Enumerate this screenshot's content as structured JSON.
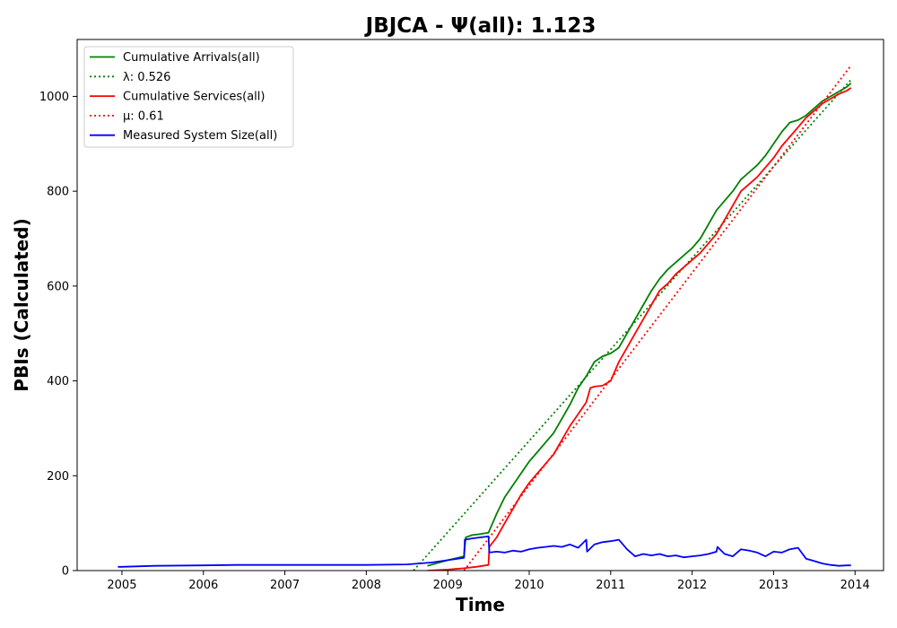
{
  "chart_data": {
    "type": "line",
    "title": "JBJCA -  Ψ(all): 1.123",
    "xlabel": "Time",
    "ylabel": "PBIs (Calculated)",
    "xlim": [
      2004.45,
      2014.35
    ],
    "ylim": [
      0,
      1120
    ],
    "xticks": [
      2005,
      2006,
      2007,
      2008,
      2009,
      2010,
      2011,
      2012,
      2013,
      2014
    ],
    "yticks": [
      0,
      200,
      400,
      600,
      800,
      1000
    ],
    "grid": false,
    "legend_position": "upper-left",
    "series": [
      {
        "name": "Cumulative Arrivals(all)",
        "color": "#008000",
        "style": "solid",
        "x": [
          2008.75,
          2009.0,
          2009.2,
          2009.22,
          2009.3,
          2009.4,
          2009.5,
          2009.6,
          2009.7,
          2009.8,
          2009.9,
          2010.0,
          2010.1,
          2010.2,
          2010.3,
          2010.4,
          2010.5,
          2010.6,
          2010.7,
          2010.8,
          2010.9,
          2011.0,
          2011.1,
          2011.2,
          2011.3,
          2011.4,
          2011.5,
          2011.6,
          2011.7,
          2011.8,
          2011.9,
          2012.0,
          2012.1,
          2012.2,
          2012.3,
          2012.4,
          2012.5,
          2012.6,
          2012.7,
          2012.8,
          2012.9,
          2013.0,
          2013.1,
          2013.2,
          2013.3,
          2013.4,
          2013.5,
          2013.6,
          2013.7,
          2013.8,
          2013.9,
          2013.95
        ],
        "values": [
          10,
          22,
          30,
          70,
          75,
          77,
          80,
          120,
          155,
          180,
          205,
          230,
          250,
          270,
          290,
          320,
          350,
          385,
          410,
          440,
          452,
          458,
          470,
          500,
          530,
          560,
          590,
          615,
          635,
          650,
          665,
          680,
          700,
          730,
          760,
          780,
          800,
          825,
          840,
          855,
          875,
          900,
          925,
          945,
          950,
          960,
          975,
          990,
          1000,
          1010,
          1020,
          1028
        ]
      },
      {
        "name": "λ: 0.526",
        "color": "#008000",
        "style": "dotted",
        "x": [
          2008.58,
          2013.95
        ],
        "values": [
          0,
          1035
        ]
      },
      {
        "name": "Cumulative Services(all)",
        "color": "#ff0000",
        "style": "solid",
        "x": [
          2008.75,
          2009.0,
          2009.2,
          2009.35,
          2009.5,
          2009.51,
          2009.6,
          2009.7,
          2009.8,
          2009.9,
          2010.0,
          2010.1,
          2010.2,
          2010.3,
          2010.4,
          2010.5,
          2010.6,
          2010.7,
          2010.75,
          2010.8,
          2010.9,
          2011.0,
          2011.1,
          2011.2,
          2011.3,
          2011.4,
          2011.5,
          2011.6,
          2011.7,
          2011.8,
          2011.9,
          2012.0,
          2012.1,
          2012.2,
          2012.3,
          2012.4,
          2012.5,
          2012.6,
          2012.7,
          2012.8,
          2012.9,
          2013.0,
          2013.1,
          2013.2,
          2013.3,
          2013.4,
          2013.5,
          2013.6,
          2013.7,
          2013.8,
          2013.9,
          2013.95
        ],
        "values": [
          0,
          2,
          5,
          8,
          12,
          50,
          70,
          100,
          130,
          160,
          185,
          205,
          225,
          245,
          275,
          305,
          330,
          355,
          385,
          388,
          390,
          400,
          440,
          470,
          500,
          530,
          560,
          590,
          605,
          625,
          640,
          655,
          670,
          690,
          710,
          740,
          770,
          800,
          815,
          830,
          850,
          870,
          895,
          915,
          935,
          955,
          970,
          985,
          995,
          1005,
          1012,
          1018
        ]
      },
      {
        "name": "μ: 0.61",
        "color": "#ff0000",
        "style": "dotted",
        "x": [
          2009.2,
          2013.95
        ],
        "values": [
          0,
          1065
        ]
      },
      {
        "name": "Measured System Size(all)",
        "color": "#0000ff",
        "style": "solid",
        "x": [
          2004.95,
          2005.0,
          2005.4,
          2006.0,
          2006.4,
          2007.0,
          2007.5,
          2008.0,
          2008.5,
          2008.8,
          2009.0,
          2009.2,
          2009.21,
          2009.3,
          2009.4,
          2009.5,
          2009.51,
          2009.6,
          2009.7,
          2009.8,
          2009.9,
          2010.0,
          2010.1,
          2010.2,
          2010.3,
          2010.4,
          2010.5,
          2010.6,
          2010.7,
          2010.71,
          2010.8,
          2010.9,
          2011.0,
          2011.1,
          2011.2,
          2011.3,
          2011.4,
          2011.5,
          2011.6,
          2011.7,
          2011.8,
          2011.9,
          2012.0,
          2012.1,
          2012.2,
          2012.3,
          2012.31,
          2012.4,
          2012.5,
          2012.6,
          2012.7,
          2012.8,
          2012.9,
          2013.0,
          2013.1,
          2013.2,
          2013.3,
          2013.4,
          2013.5,
          2013.6,
          2013.7,
          2013.8,
          2013.9,
          2013.95
        ],
        "values": [
          8,
          8,
          10,
          11,
          12,
          12,
          12,
          12,
          13,
          17,
          22,
          27,
          65,
          68,
          70,
          72,
          38,
          40,
          38,
          42,
          40,
          45,
          48,
          50,
          52,
          50,
          55,
          48,
          65,
          40,
          55,
          60,
          62,
          65,
          45,
          30,
          35,
          32,
          35,
          30,
          32,
          28,
          30,
          32,
          35,
          40,
          50,
          35,
          30,
          45,
          42,
          38,
          30,
          40,
          38,
          45,
          48,
          25,
          20,
          15,
          12,
          10,
          11,
          11
        ]
      }
    ]
  }
}
